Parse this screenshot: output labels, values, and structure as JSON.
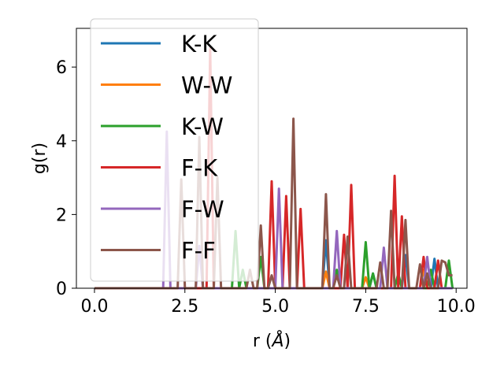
{
  "chart_data": {
    "type": "line",
    "title": "",
    "xlabel": "r (",
    "xlabel_unit": "Å",
    "xlabel_close": ")",
    "ylabel": "g(r)",
    "xlim": [
      -0.5,
      10.3
    ],
    "ylim": [
      0,
      7.05
    ],
    "xticks": [
      0.0,
      2.5,
      5.0,
      7.5,
      10.0
    ],
    "xtick_labels": [
      "0.0",
      "2.5",
      "5.0",
      "7.5",
      "10.0"
    ],
    "yticks": [
      0,
      2,
      4,
      6
    ],
    "ytick_labels": [
      "0",
      "2",
      "4",
      "6"
    ],
    "grid": false,
    "legend_position": "upper-left",
    "series": [
      {
        "name": "K-K",
        "color": "#1f77b4",
        "points": [
          [
            0,
            0
          ],
          [
            6.3,
            0
          ],
          [
            6.4,
            1.3
          ],
          [
            6.5,
            0
          ],
          [
            7.6,
            0
          ],
          [
            7.7,
            0.4
          ],
          [
            7.8,
            0
          ],
          [
            8.5,
            0
          ],
          [
            8.6,
            0.9
          ],
          [
            8.7,
            0
          ],
          [
            9.3,
            0
          ],
          [
            9.4,
            0.8
          ],
          [
            9.5,
            0
          ],
          [
            9.9,
            0
          ]
        ]
      },
      {
        "name": "W-W",
        "color": "#ff7f0e",
        "points": [
          [
            0,
            0
          ],
          [
            6.3,
            0
          ],
          [
            6.4,
            0.45
          ],
          [
            6.5,
            0
          ],
          [
            7.4,
            0
          ],
          [
            7.5,
            0.3
          ],
          [
            7.6,
            0
          ],
          [
            9.0,
            0
          ],
          [
            9.1,
            0.5
          ],
          [
            9.2,
            0
          ],
          [
            9.9,
            0
          ]
        ]
      },
      {
        "name": "K-W",
        "color": "#2ca02c",
        "points": [
          [
            0,
            0
          ],
          [
            3.8,
            0
          ],
          [
            3.9,
            1.55
          ],
          [
            4.0,
            0
          ],
          [
            4.1,
            0.5
          ],
          [
            4.2,
            0
          ],
          [
            4.5,
            0
          ],
          [
            4.6,
            0.85
          ],
          [
            4.7,
            0
          ],
          [
            6.6,
            0
          ],
          [
            6.7,
            0.5
          ],
          [
            6.8,
            0
          ],
          [
            7.4,
            0
          ],
          [
            7.5,
            1.25
          ],
          [
            7.6,
            0
          ],
          [
            7.7,
            0.4
          ],
          [
            7.8,
            0
          ],
          [
            8.3,
            0
          ],
          [
            8.4,
            0.4
          ],
          [
            8.5,
            0
          ],
          [
            9.2,
            0
          ],
          [
            9.3,
            0.5
          ],
          [
            9.4,
            0
          ],
          [
            9.7,
            0
          ],
          [
            9.8,
            0.75
          ],
          [
            9.9,
            0
          ]
        ]
      },
      {
        "name": "F-K",
        "color": "#d62728",
        "points": [
          [
            0,
            0
          ],
          [
            3.1,
            0
          ],
          [
            3.2,
            6.5
          ],
          [
            3.3,
            0
          ],
          [
            4.8,
            0
          ],
          [
            4.9,
            2.9
          ],
          [
            5.0,
            0
          ],
          [
            5.2,
            0
          ],
          [
            5.3,
            2.5
          ],
          [
            5.4,
            0
          ],
          [
            5.6,
            0
          ],
          [
            5.7,
            2.15
          ],
          [
            5.8,
            0
          ],
          [
            6.8,
            0
          ],
          [
            6.9,
            1.45
          ],
          [
            7.0,
            0
          ],
          [
            7.1,
            2.8
          ],
          [
            7.2,
            0
          ],
          [
            8.2,
            0
          ],
          [
            8.3,
            3.05
          ],
          [
            8.4,
            0
          ],
          [
            8.5,
            1.95
          ],
          [
            8.6,
            0
          ],
          [
            9.0,
            0
          ],
          [
            9.1,
            0.85
          ],
          [
            9.2,
            0
          ],
          [
            9.4,
            0
          ],
          [
            9.5,
            0.75
          ],
          [
            9.6,
            0
          ]
        ]
      },
      {
        "name": "F-W",
        "color": "#9467bd",
        "points": [
          [
            0,
            0
          ],
          [
            1.9,
            0
          ],
          [
            2.0,
            4.25
          ],
          [
            2.1,
            0
          ],
          [
            2.8,
            0
          ],
          [
            2.9,
            1.15
          ],
          [
            3.0,
            0
          ],
          [
            5.0,
            0
          ],
          [
            5.1,
            2.7
          ],
          [
            5.2,
            0
          ],
          [
            6.6,
            0
          ],
          [
            6.7,
            1.55
          ],
          [
            6.8,
            0
          ],
          [
            7.9,
            0
          ],
          [
            8.0,
            1.1
          ],
          [
            8.1,
            0
          ],
          [
            9.1,
            0
          ],
          [
            9.2,
            0.85
          ],
          [
            9.3,
            0
          ],
          [
            9.9,
            0
          ]
        ]
      },
      {
        "name": "F-F",
        "color": "#8c564b",
        "points": [
          [
            0,
            0
          ],
          [
            2.3,
            0
          ],
          [
            2.4,
            2.95
          ],
          [
            2.5,
            0
          ],
          [
            2.8,
            0
          ],
          [
            2.9,
            4.1
          ],
          [
            3.0,
            0
          ],
          [
            3.3,
            0
          ],
          [
            3.4,
            3.0
          ],
          [
            3.5,
            0
          ],
          [
            4.2,
            0
          ],
          [
            4.3,
            0.5
          ],
          [
            4.4,
            0
          ],
          [
            4.5,
            0
          ],
          [
            4.6,
            1.7
          ],
          [
            4.7,
            0
          ],
          [
            4.8,
            0
          ],
          [
            4.9,
            0.35
          ],
          [
            5.0,
            0
          ],
          [
            5.4,
            0
          ],
          [
            5.5,
            4.6
          ],
          [
            5.6,
            0
          ],
          [
            6.3,
            0
          ],
          [
            6.4,
            2.55
          ],
          [
            6.5,
            0
          ],
          [
            6.6,
            0
          ],
          [
            6.7,
            0.35
          ],
          [
            6.8,
            0
          ],
          [
            6.9,
            0
          ],
          [
            7.0,
            1.4
          ],
          [
            7.1,
            0
          ],
          [
            7.8,
            0
          ],
          [
            7.9,
            0.7
          ],
          [
            8.0,
            0
          ],
          [
            8.1,
            0
          ],
          [
            8.2,
            2.1
          ],
          [
            8.3,
            0
          ],
          [
            8.5,
            0
          ],
          [
            8.6,
            1.85
          ],
          [
            8.7,
            0
          ],
          [
            8.9,
            0
          ],
          [
            9.0,
            0.65
          ],
          [
            9.1,
            0
          ],
          [
            9.2,
            0.4
          ],
          [
            9.3,
            0
          ],
          [
            9.5,
            0
          ],
          [
            9.6,
            0.75
          ],
          [
            9.7,
            0.7
          ],
          [
            9.8,
            0.35
          ],
          [
            9.9,
            0.35
          ]
        ]
      }
    ]
  }
}
